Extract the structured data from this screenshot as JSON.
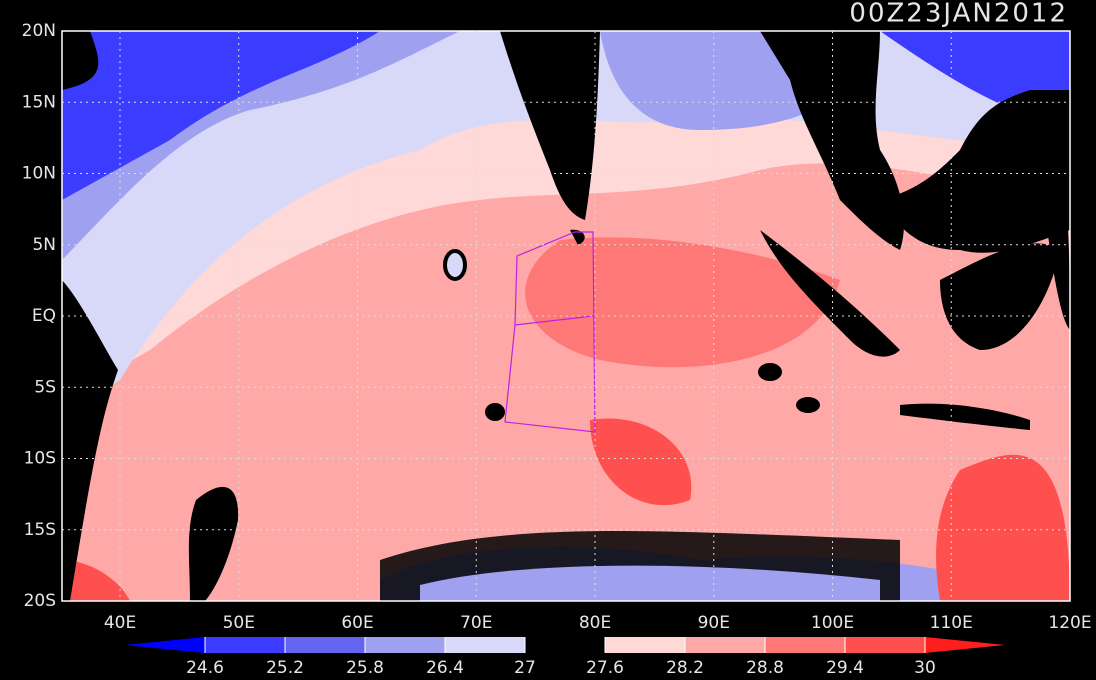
{
  "title": "00Z23JAN2012",
  "lat_labels": [
    "20N",
    "15N",
    "10N",
    "5N",
    "EQ",
    "5S",
    "10S",
    "15S",
    "20S"
  ],
  "lon_labels": [
    "40E",
    "50E",
    "60E",
    "70E",
    "80E",
    "90E",
    "100E",
    "110E",
    "120E"
  ],
  "colorbar": {
    "levels": [
      24.6,
      25.2,
      25.8,
      26.4,
      27,
      27.6,
      28.2,
      28.8,
      29.4,
      30
    ],
    "colors": [
      "#0000ff",
      "#3c3cff",
      "#6464f0",
      "#a0a0f0",
      "#d8d8f8",
      "#000000",
      "#ffd8d8",
      "#ffa8a8",
      "#ff7878",
      "#ff5050",
      "#ff1e1e"
    ]
  }
}
